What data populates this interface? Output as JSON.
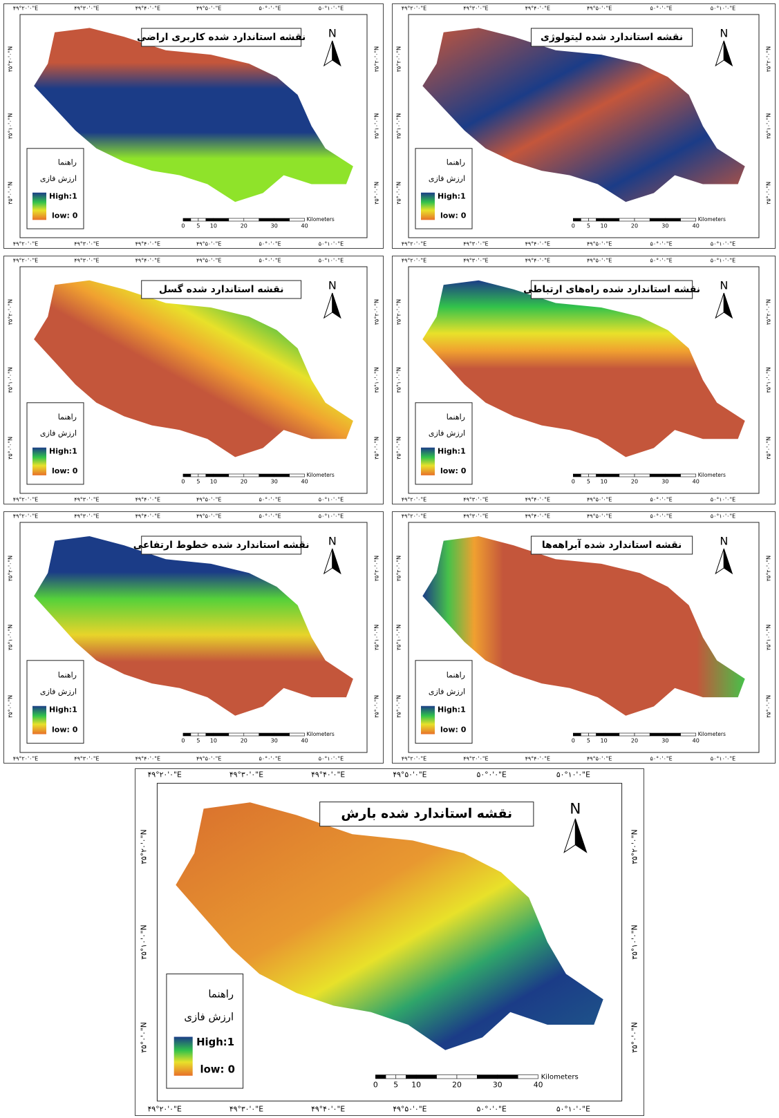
{
  "panels": [
    {
      "title": "نقشه استاندارد شده کاربری اراضی"
    },
    {
      "title": "نقشه استاندارد شده لیتولوژی"
    },
    {
      "title": "نقشه استاندارد شده گسل"
    },
    {
      "title": "نقشه استاندارد شده راه‌های ارتباطی"
    },
    {
      "title": "نقشه استاندارد شده خطوط ارتفاعی"
    },
    {
      "title": "نقشه استاندارد شده آبراهه‌ها"
    },
    {
      "title": "نقشه استاندارد شده بارش"
    }
  ],
  "graticule": {
    "lon": [
      "۴۹°۲۰'۰\"E",
      "۴۹°۳۰'۰\"E",
      "۴۹°۴۰'۰\"E",
      "۴۹°۵۰'۰\"E",
      "۵۰°۰'۰\"E",
      "۵۰°۱۰'۰\"E"
    ],
    "lat": [
      "۳۵°۲۰'۰\"N",
      "۳۵°۱۰'۰\"N",
      "۳۵°۰'۰\"N"
    ]
  },
  "legend": {
    "title": "راهنما",
    "subtitle": "ارزش فازی",
    "high": "High:1",
    "low": "low: 0"
  },
  "north": "N",
  "scale_bar": {
    "ticks": [
      0,
      5,
      10,
      20,
      30,
      40
    ],
    "unit": "Kilometers"
  }
}
